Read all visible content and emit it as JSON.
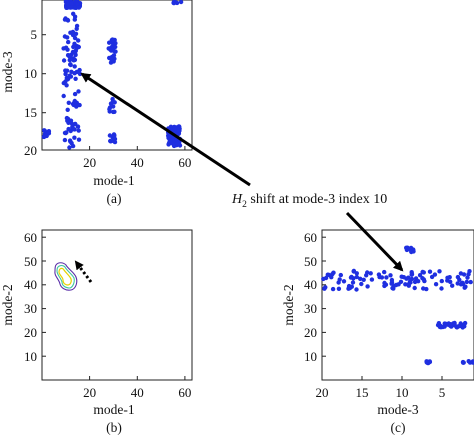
{
  "figure": {
    "annotation": {
      "prefix": "H",
      "subscript": "2",
      "text": " shift at mode-3 index 10"
    }
  },
  "chart_data": [
    {
      "type": "scatter",
      "panel_label": "(a)",
      "xlabel": "mode-1",
      "ylabel": "mode-3",
      "xlim": [
        0,
        63
      ],
      "ylim": [
        20,
        1
      ],
      "y_reversed": true,
      "xticks": [
        "20",
        "40",
        "60"
      ],
      "yticks": [
        "5",
        "10",
        "15",
        "20"
      ],
      "marker_color": "#1f2fe0",
      "clusters": [
        {
          "x": [
            9,
            16
          ],
          "y": [
            1,
            20
          ],
          "density": "dense"
        },
        {
          "x": [
            10,
            16
          ],
          "y": [
            1,
            2
          ],
          "density": "dense"
        },
        {
          "x": [
            0.5,
            3
          ],
          "y": [
            17.5,
            18.5
          ],
          "density": "sparse"
        },
        {
          "x": [
            28,
            31
          ],
          "y": [
            6,
            9
          ],
          "density": "medium"
        },
        {
          "x": [
            28,
            31
          ],
          "y": [
            13.5,
            15.5
          ],
          "density": "sparse"
        },
        {
          "x": [
            28,
            31
          ],
          "y": [
            18,
            19
          ],
          "density": "sparse"
        },
        {
          "x": [
            53,
            58
          ],
          "y": [
            17,
            19.5
          ],
          "density": "dense"
        },
        {
          "x": [
            55,
            59
          ],
          "y": [
            1,
            1.5
          ],
          "density": "sparse"
        }
      ]
    },
    {
      "type": "contour",
      "panel_label": "(b)",
      "xlabel": "mode-1",
      "ylabel": "mode-2",
      "xlim": [
        0,
        63
      ],
      "ylim": [
        0,
        63
      ],
      "xticks": [
        "20",
        "40",
        "60"
      ],
      "yticks": [
        "10",
        "20",
        "30",
        "40",
        "50",
        "60"
      ],
      "contour_center": [
        13,
        41
      ],
      "contour_colors": [
        "#e8d200",
        "#3fc6a0",
        "#5a2ea8"
      ],
      "arrow": {
        "from": [
          21,
          36
        ],
        "to": [
          12,
          49
        ],
        "style": "dotted"
      }
    },
    {
      "type": "scatter",
      "panel_label": "(c)",
      "xlabel": "mode-3",
      "ylabel": "mode-2",
      "xlim": [
        20,
        1
      ],
      "x_reversed": true,
      "ylim": [
        0,
        63
      ],
      "xticks": [
        "20",
        "15",
        "10",
        "5"
      ],
      "yticks": [
        "10",
        "20",
        "30",
        "40",
        "50",
        "60"
      ],
      "marker_color": "#1f2fe0",
      "clusters": [
        {
          "x": [
            20,
            1
          ],
          "y": [
            38,
            46
          ],
          "density": "dense"
        },
        {
          "x": [
            9.5,
            8.5
          ],
          "y": [
            53,
            56
          ],
          "density": "sparse"
        },
        {
          "x": [
            5.5,
            2
          ],
          "y": [
            22,
            24
          ],
          "density": "medium"
        },
        {
          "x": [
            7,
            6.5
          ],
          "y": [
            7,
            8
          ],
          "density": "sparse"
        },
        {
          "x": [
            2.5,
            1
          ],
          "y": [
            7,
            8
          ],
          "density": "sparse"
        }
      ]
    }
  ]
}
